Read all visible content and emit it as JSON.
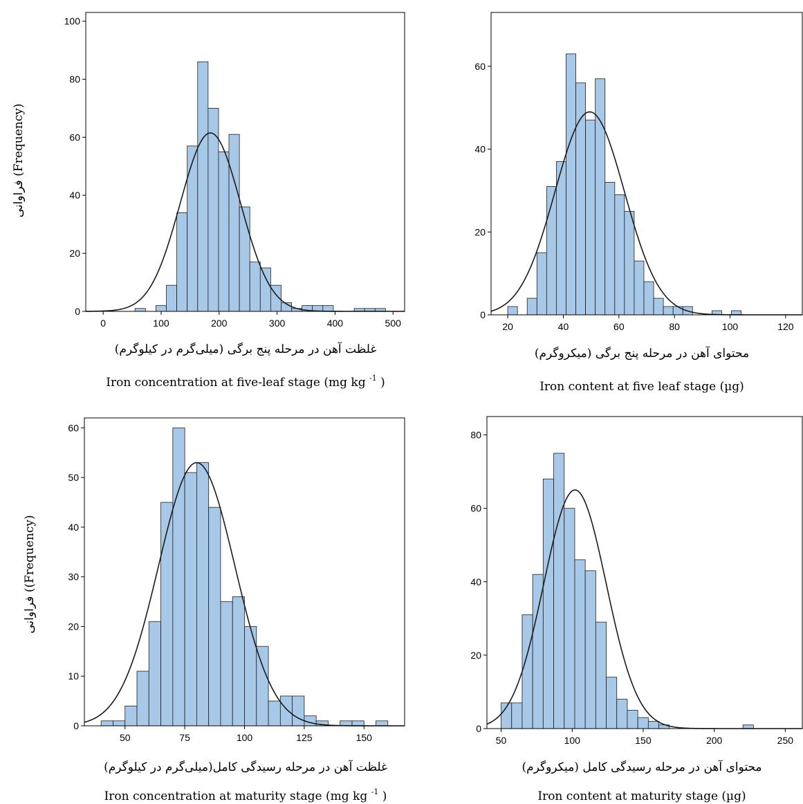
{
  "chart_data": [
    {
      "type": "histogram",
      "xlabel_fa": "غلظت آهن در مرحله پنج برگی (میلی‌گرم در کیلوگرم)",
      "xlabel_en": "Iron concentration at five-leaf stage (mg kg",
      "xlabel_en_sup": "-1",
      "xlabel_en_tail": ")",
      "ylabel": "فراوانی (Frequency)",
      "xlim": [
        -30,
        520
      ],
      "ylim": [
        0,
        103
      ],
      "xticks": [
        0,
        100,
        200,
        300,
        400,
        500
      ],
      "yticks": [
        0,
        20,
        40,
        60,
        80,
        100
      ],
      "bin_start": 55,
      "bin_width": 18,
      "counts": [
        1,
        0,
        2,
        9,
        34,
        57,
        86,
        70,
        55,
        61,
        36,
        17,
        15,
        9,
        3,
        1,
        2,
        2,
        2,
        0,
        0,
        1,
        1,
        1
      ],
      "normal_curve": {
        "mean": 185,
        "sd": 52,
        "peak": 61.5
      }
    },
    {
      "type": "histogram",
      "xlabel_fa": "محتوای آهن در مرحله پنج برگی (میکروگرم)",
      "xlabel_en": "Iron content at five leaf stage (µg)",
      "ylabel": "",
      "xlim": [
        14,
        126
      ],
      "ylim": [
        0,
        73
      ],
      "xticks": [
        20,
        40,
        60,
        80,
        100,
        120
      ],
      "yticks": [
        0,
        20,
        40,
        60
      ],
      "bin_start": 20,
      "bin_width": 3.5,
      "counts": [
        2,
        0,
        4,
        15,
        31,
        37,
        63,
        56,
        47,
        57,
        32,
        29,
        25,
        13,
        8,
        4,
        2,
        2,
        2,
        0,
        0,
        1,
        0,
        1,
        0
      ],
      "normal_curve": {
        "mean": 49.5,
        "sd": 12.5,
        "peak": 49
      }
    },
    {
      "type": "histogram",
      "xlabel_fa": "غلظت آهن در مرحله رسیدگی کامل(میلی‌گرم در کیلوگرم)",
      "xlabel_en": "Iron concentration at maturity stage (mg kg",
      "xlabel_en_sup": "-1",
      "xlabel_en_tail": ")",
      "ylabel": "فراوانی ((Frequency)",
      "xlim": [
        33,
        167
      ],
      "ylim": [
        0,
        62
      ],
      "xticks": [
        50,
        75,
        100,
        125,
        150
      ],
      "yticks": [
        0,
        10,
        20,
        30,
        40,
        50,
        60
      ],
      "bin_start": 40,
      "bin_width": 5,
      "counts": [
        1,
        1,
        4,
        11,
        21,
        45,
        60,
        51,
        53,
        44,
        25,
        26,
        20,
        16,
        5,
        6,
        6,
        2,
        1,
        0,
        1,
        1,
        0,
        1
      ],
      "normal_curve": {
        "mean": 80,
        "sd": 16,
        "peak": 53
      }
    },
    {
      "type": "histogram",
      "xlabel_fa": "محتوای آهن در مرحله رسیدگی کامل (میکروگرم)",
      "xlabel_en": "Iron content at maturity stage (µg)",
      "ylabel": "",
      "xlim": [
        40,
        262
      ],
      "ylim": [
        0,
        85
      ],
      "xticks": [
        50,
        100,
        150,
        200,
        250
      ],
      "yticks": [
        0,
        20,
        40,
        60,
        80
      ],
      "bin_start": 50,
      "bin_width": 7.4,
      "counts": [
        7,
        7,
        31,
        42,
        68,
        75,
        60,
        46,
        43,
        29,
        14,
        8,
        5,
        3,
        2,
        1,
        0,
        0,
        0,
        0,
        0,
        0,
        0,
        1
      ],
      "normal_curve": {
        "mean": 102,
        "sd": 22,
        "peak": 65
      }
    }
  ]
}
